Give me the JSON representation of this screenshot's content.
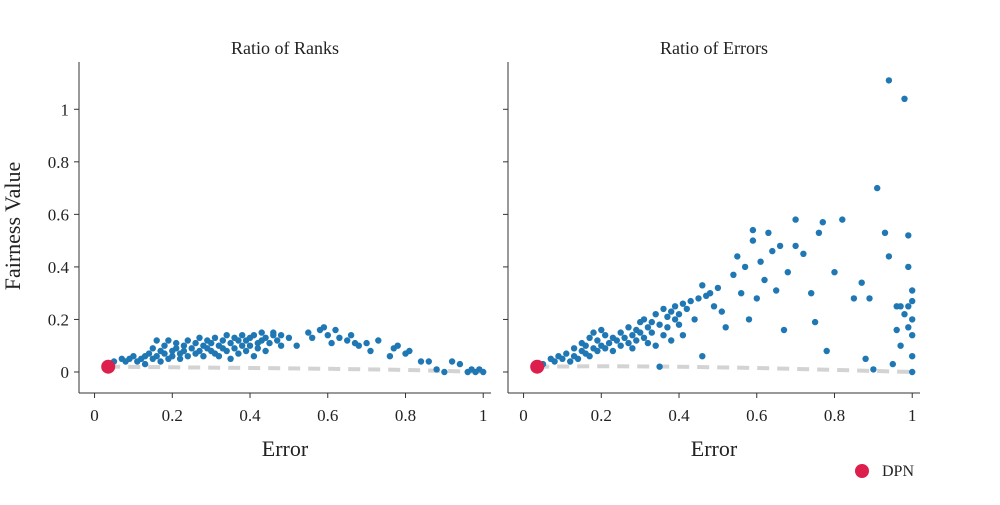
{
  "chart_data": {
    "type": "scatter",
    "ylabel": "Fairness Value",
    "y_ticks": [
      "0",
      "0.2",
      "0.4",
      "0.6",
      "0.8",
      "1"
    ],
    "x_ticks": [
      "0",
      "0.2",
      "0.4",
      "0.6",
      "0.8",
      "1"
    ],
    "legend": {
      "label": "DPN",
      "placement": "bottom-right"
    },
    "colors": {
      "points": "#1f77b4",
      "highlight": "#dc1f4d",
      "frontier": "#d3d3d3"
    },
    "panels": [
      {
        "title": "Ratio of Ranks",
        "xlabel": "Error",
        "xlim": [
          -0.04,
          1.02
        ],
        "ylim": [
          -0.08,
          1.18
        ],
        "highlight": {
          "x": 0.035,
          "y": 0.02
        },
        "frontier": [
          [
            0.035,
            0.02
          ],
          [
            0.2,
            0.018
          ],
          [
            0.4,
            0.015
          ],
          [
            0.6,
            0.012
          ],
          [
            0.8,
            0.008
          ],
          [
            1.0,
            0.0
          ]
        ],
        "points": [
          [
            0.05,
            0.04
          ],
          [
            0.07,
            0.05
          ],
          [
            0.08,
            0.04
          ],
          [
            0.09,
            0.05
          ],
          [
            0.1,
            0.06
          ],
          [
            0.11,
            0.04
          ],
          [
            0.12,
            0.05
          ],
          [
            0.13,
            0.06
          ],
          [
            0.13,
            0.03
          ],
          [
            0.14,
            0.07
          ],
          [
            0.15,
            0.05
          ],
          [
            0.15,
            0.09
          ],
          [
            0.16,
            0.06
          ],
          [
            0.16,
            0.12
          ],
          [
            0.17,
            0.08
          ],
          [
            0.17,
            0.04
          ],
          [
            0.18,
            0.07
          ],
          [
            0.18,
            0.1
          ],
          [
            0.19,
            0.05
          ],
          [
            0.19,
            0.12
          ],
          [
            0.2,
            0.08
          ],
          [
            0.2,
            0.06
          ],
          [
            0.21,
            0.09
          ],
          [
            0.21,
            0.11
          ],
          [
            0.22,
            0.07
          ],
          [
            0.22,
            0.05
          ],
          [
            0.23,
            0.1
          ],
          [
            0.23,
            0.08
          ],
          [
            0.24,
            0.06
          ],
          [
            0.24,
            0.12
          ],
          [
            0.25,
            0.09
          ],
          [
            0.26,
            0.07
          ],
          [
            0.26,
            0.11
          ],
          [
            0.27,
            0.08
          ],
          [
            0.27,
            0.13
          ],
          [
            0.28,
            0.1
          ],
          [
            0.28,
            0.06
          ],
          [
            0.29,
            0.09
          ],
          [
            0.29,
            0.12
          ],
          [
            0.3,
            0.08
          ],
          [
            0.3,
            0.11
          ],
          [
            0.31,
            0.07
          ],
          [
            0.31,
            0.13
          ],
          [
            0.32,
            0.1
          ],
          [
            0.32,
            0.06
          ],
          [
            0.33,
            0.12
          ],
          [
            0.33,
            0.09
          ],
          [
            0.34,
            0.14
          ],
          [
            0.34,
            0.08
          ],
          [
            0.35,
            0.11
          ],
          [
            0.35,
            0.05
          ],
          [
            0.36,
            0.13
          ],
          [
            0.36,
            0.09
          ],
          [
            0.37,
            0.12
          ],
          [
            0.37,
            0.07
          ],
          [
            0.38,
            0.1
          ],
          [
            0.38,
            0.14
          ],
          [
            0.39,
            0.08
          ],
          [
            0.39,
            0.12
          ],
          [
            0.4,
            0.13
          ],
          [
            0.4,
            0.1
          ],
          [
            0.41,
            0.06
          ],
          [
            0.41,
            0.14
          ],
          [
            0.42,
            0.11
          ],
          [
            0.42,
            0.09
          ],
          [
            0.43,
            0.15
          ],
          [
            0.43,
            0.12
          ],
          [
            0.44,
            0.13
          ],
          [
            0.44,
            0.08
          ],
          [
            0.45,
            0.11
          ],
          [
            0.46,
            0.15
          ],
          [
            0.46,
            0.14
          ],
          [
            0.47,
            0.12
          ],
          [
            0.48,
            0.14
          ],
          [
            0.48,
            0.1
          ],
          [
            0.5,
            0.13
          ],
          [
            0.52,
            0.1
          ],
          [
            0.55,
            0.15
          ],
          [
            0.56,
            0.13
          ],
          [
            0.58,
            0.16
          ],
          [
            0.59,
            0.17
          ],
          [
            0.6,
            0.14
          ],
          [
            0.61,
            0.11
          ],
          [
            0.62,
            0.16
          ],
          [
            0.63,
            0.13
          ],
          [
            0.65,
            0.12
          ],
          [
            0.66,
            0.14
          ],
          [
            0.67,
            0.11
          ],
          [
            0.68,
            0.1
          ],
          [
            0.7,
            0.11
          ],
          [
            0.71,
            0.08
          ],
          [
            0.73,
            0.12
          ],
          [
            0.76,
            0.06
          ],
          [
            0.77,
            0.09
          ],
          [
            0.78,
            0.1
          ],
          [
            0.8,
            0.07
          ],
          [
            0.81,
            0.08
          ],
          [
            0.84,
            0.04
          ],
          [
            0.86,
            0.04
          ],
          [
            0.88,
            0.01
          ],
          [
            0.9,
            0.0
          ],
          [
            0.92,
            0.04
          ],
          [
            0.94,
            0.03
          ],
          [
            0.96,
            0.0
          ],
          [
            0.97,
            0.01
          ],
          [
            0.98,
            0.0
          ],
          [
            0.99,
            0.01
          ],
          [
            1.0,
            0.0
          ]
        ]
      },
      {
        "title": "Ratio of Errors",
        "xlabel": "Error",
        "xlim": [
          -0.04,
          1.02
        ],
        "ylim": [
          -0.08,
          1.18
        ],
        "highlight": {
          "x": 0.035,
          "y": 0.02
        },
        "frontier": [
          [
            0.035,
            0.02
          ],
          [
            0.2,
            0.022
          ],
          [
            0.4,
            0.02
          ],
          [
            0.6,
            0.015
          ],
          [
            0.8,
            0.008
          ],
          [
            1.0,
            0.0
          ]
        ],
        "points": [
          [
            0.05,
            0.03
          ],
          [
            0.07,
            0.05
          ],
          [
            0.08,
            0.04
          ],
          [
            0.09,
            0.06
          ],
          [
            0.1,
            0.05
          ],
          [
            0.11,
            0.07
          ],
          [
            0.12,
            0.04
          ],
          [
            0.13,
            0.06
          ],
          [
            0.13,
            0.09
          ],
          [
            0.14,
            0.05
          ],
          [
            0.15,
            0.08
          ],
          [
            0.15,
            0.11
          ],
          [
            0.16,
            0.07
          ],
          [
            0.16,
            0.1
          ],
          [
            0.17,
            0.06
          ],
          [
            0.17,
            0.13
          ],
          [
            0.18,
            0.09
          ],
          [
            0.18,
            0.15
          ],
          [
            0.19,
            0.08
          ],
          [
            0.19,
            0.12
          ],
          [
            0.2,
            0.1
          ],
          [
            0.2,
            0.16
          ],
          [
            0.21,
            0.09
          ],
          [
            0.21,
            0.14
          ],
          [
            0.22,
            0.11
          ],
          [
            0.23,
            0.13
          ],
          [
            0.23,
            0.08
          ],
          [
            0.24,
            0.12
          ],
          [
            0.25,
            0.1
          ],
          [
            0.25,
            0.15
          ],
          [
            0.26,
            0.13
          ],
          [
            0.27,
            0.11
          ],
          [
            0.27,
            0.17
          ],
          [
            0.28,
            0.14
          ],
          [
            0.28,
            0.09
          ],
          [
            0.29,
            0.16
          ],
          [
            0.29,
            0.12
          ],
          [
            0.3,
            0.15
          ],
          [
            0.3,
            0.19
          ],
          [
            0.31,
            0.13
          ],
          [
            0.31,
            0.2
          ],
          [
            0.32,
            0.17
          ],
          [
            0.32,
            0.11
          ],
          [
            0.33,
            0.19
          ],
          [
            0.33,
            0.15
          ],
          [
            0.34,
            0.22
          ],
          [
            0.34,
            0.1
          ],
          [
            0.35,
            0.18
          ],
          [
            0.35,
            0.02
          ],
          [
            0.36,
            0.24
          ],
          [
            0.36,
            0.14
          ],
          [
            0.37,
            0.21
          ],
          [
            0.37,
            0.17
          ],
          [
            0.38,
            0.23
          ],
          [
            0.38,
            0.12
          ],
          [
            0.39,
            0.2
          ],
          [
            0.39,
            0.25
          ],
          [
            0.4,
            0.18
          ],
          [
            0.4,
            0.22
          ],
          [
            0.41,
            0.26
          ],
          [
            0.41,
            0.14
          ],
          [
            0.42,
            0.24
          ],
          [
            0.43,
            0.27
          ],
          [
            0.44,
            0.2
          ],
          [
            0.45,
            0.28
          ],
          [
            0.46,
            0.33
          ],
          [
            0.46,
            0.06
          ],
          [
            0.47,
            0.29
          ],
          [
            0.48,
            0.3
          ],
          [
            0.49,
            0.25
          ],
          [
            0.5,
            0.32
          ],
          [
            0.51,
            0.23
          ],
          [
            0.52,
            0.17
          ],
          [
            0.54,
            0.37
          ],
          [
            0.55,
            0.44
          ],
          [
            0.56,
            0.3
          ],
          [
            0.57,
            0.4
          ],
          [
            0.58,
            0.2
          ],
          [
            0.59,
            0.54
          ],
          [
            0.59,
            0.5
          ],
          [
            0.6,
            0.28
          ],
          [
            0.61,
            0.42
          ],
          [
            0.62,
            0.35
          ],
          [
            0.63,
            0.53
          ],
          [
            0.64,
            0.46
          ],
          [
            0.65,
            0.31
          ],
          [
            0.66,
            0.48
          ],
          [
            0.67,
            0.16
          ],
          [
            0.68,
            0.38
          ],
          [
            0.7,
            0.58
          ],
          [
            0.7,
            0.48
          ],
          [
            0.72,
            0.45
          ],
          [
            0.74,
            0.3
          ],
          [
            0.75,
            0.19
          ],
          [
            0.76,
            0.53
          ],
          [
            0.77,
            0.57
          ],
          [
            0.78,
            0.08
          ],
          [
            0.8,
            0.38
          ],
          [
            0.82,
            0.58
          ],
          [
            0.85,
            0.28
          ],
          [
            0.87,
            0.34
          ],
          [
            0.88,
            0.05
          ],
          [
            0.89,
            0.28
          ],
          [
            0.9,
            0.01
          ],
          [
            0.91,
            0.7
          ],
          [
            0.93,
            0.53
          ],
          [
            0.94,
            0.44
          ],
          [
            0.94,
            1.11
          ],
          [
            0.95,
            0.03
          ],
          [
            0.96,
            0.16
          ],
          [
            0.96,
            0.25
          ],
          [
            0.97,
            0.1
          ],
          [
            0.98,
            1.04
          ],
          [
            0.98,
            0.22
          ],
          [
            0.99,
            0.52
          ],
          [
            0.99,
            0.4
          ],
          [
            1.0,
            0.31
          ],
          [
            1.0,
            0.27
          ],
          [
            1.0,
            0.2
          ],
          [
            1.0,
            0.14
          ],
          [
            1.0,
            0.06
          ],
          [
            1.0,
            0.0
          ],
          [
            0.97,
            0.25
          ],
          [
            0.99,
            0.17
          ],
          [
            0.99,
            0.25
          ]
        ]
      }
    ]
  }
}
